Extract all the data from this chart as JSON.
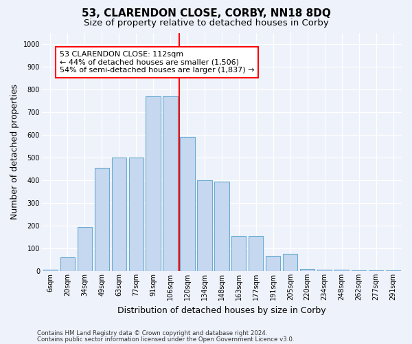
{
  "title_line1": "53, CLARENDON CLOSE, CORBY, NN18 8DQ",
  "title_line2": "Size of property relative to detached houses in Corby",
  "xlabel": "Distribution of detached houses by size in Corby",
  "ylabel": "Number of detached properties",
  "footnote1": "Contains HM Land Registry data © Crown copyright and database right 2024.",
  "footnote2": "Contains public sector information licensed under the Open Government Licence v3.0.",
  "bar_labels": [
    "6sqm",
    "20sqm",
    "34sqm",
    "49sqm",
    "63sqm",
    "77sqm",
    "91sqm",
    "106sqm",
    "120sqm",
    "134sqm",
    "148sqm",
    "163sqm",
    "177sqm",
    "191sqm",
    "205sqm",
    "220sqm",
    "234sqm",
    "248sqm",
    "262sqm",
    "277sqm",
    "291sqm"
  ],
  "bar_values": [
    5,
    60,
    195,
    455,
    500,
    500,
    770,
    770,
    590,
    400,
    395,
    155,
    155,
    65,
    75,
    10,
    5,
    5,
    2,
    2,
    2
  ],
  "bar_color": "#c5d8f0",
  "bar_edge_color": "#6aabd2",
  "property_line_x": 7.5,
  "property_line_color": "red",
  "annotation_text": "53 CLARENDON CLOSE: 112sqm\n← 44% of detached houses are smaller (1,506)\n54% of semi-detached houses are larger (1,837) →",
  "annotation_box_color": "white",
  "annotation_box_edge_color": "red",
  "ylim": [
    0,
    1050
  ],
  "yticks": [
    0,
    100,
    200,
    300,
    400,
    500,
    600,
    700,
    800,
    900,
    1000
  ],
  "background_color": "#eef2fa",
  "grid_color": "white",
  "title_fontsize": 11,
  "subtitle_fontsize": 9.5,
  "axis_label_fontsize": 9,
  "tick_fontsize": 7,
  "annotation_fontsize": 8
}
